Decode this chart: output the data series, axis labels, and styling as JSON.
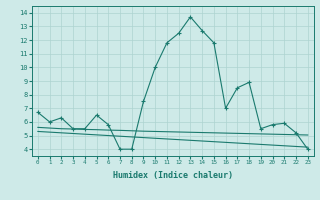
{
  "x": [
    0,
    1,
    2,
    3,
    4,
    5,
    6,
    7,
    8,
    9,
    10,
    11,
    12,
    13,
    14,
    15,
    16,
    17,
    18,
    19,
    20,
    21,
    22,
    23
  ],
  "line_main": [
    6.7,
    6.0,
    6.3,
    5.5,
    5.5,
    6.5,
    5.8,
    4.0,
    4.0,
    7.5,
    10.0,
    11.8,
    12.5,
    13.7,
    12.7,
    11.8,
    7.0,
    8.5,
    8.9,
    5.5,
    5.8,
    5.9,
    5.2,
    4.0
  ],
  "line2": [
    5.3,
    5.25,
    5.2,
    5.15,
    5.1,
    5.05,
    5.0,
    4.95,
    4.9,
    4.85,
    4.8,
    4.75,
    4.7,
    4.65,
    4.6,
    4.55,
    4.5,
    4.45,
    4.4,
    4.35,
    4.3,
    4.25,
    4.2,
    4.15
  ],
  "line3": [
    5.6,
    5.55,
    5.5,
    5.48,
    5.45,
    5.43,
    5.4,
    5.38,
    5.35,
    5.32,
    5.3,
    5.28,
    5.26,
    5.24,
    5.22,
    5.2,
    5.18,
    5.16,
    5.14,
    5.12,
    5.1,
    5.08,
    5.06,
    5.04
  ],
  "line_color": "#1a7a6e",
  "bg_color": "#ceeae8",
  "grid_color": "#aed4d0",
  "ylim": [
    3.5,
    14.5
  ],
  "xlim": [
    -0.5,
    23.5
  ],
  "yticks": [
    4,
    5,
    6,
    7,
    8,
    9,
    10,
    11,
    12,
    13,
    14
  ],
  "xticks": [
    0,
    1,
    2,
    3,
    4,
    5,
    6,
    7,
    8,
    9,
    10,
    11,
    12,
    13,
    14,
    15,
    16,
    17,
    18,
    19,
    20,
    21,
    22,
    23
  ],
  "xlabel": "Humidex (Indice chaleur)"
}
